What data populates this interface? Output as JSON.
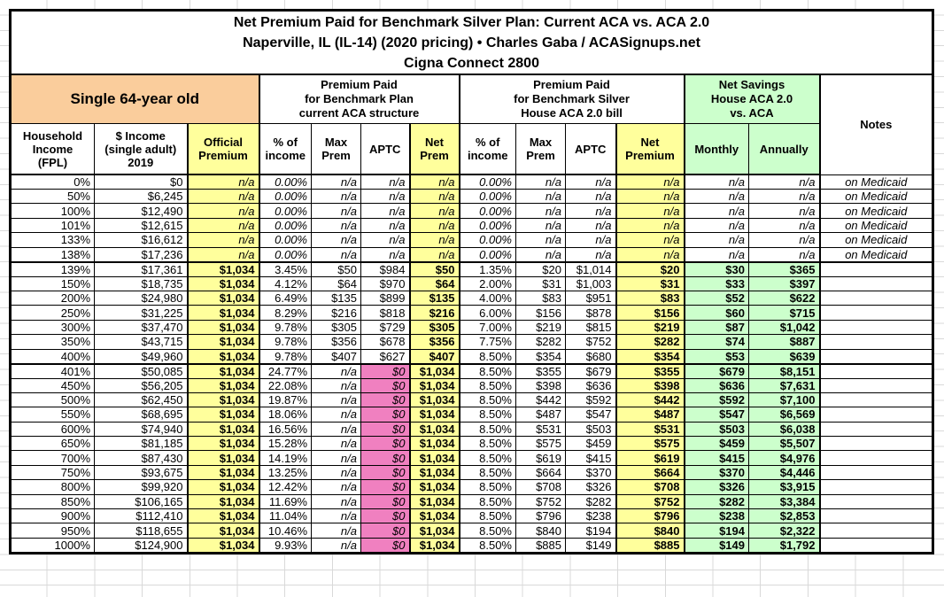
{
  "chart_data": {
    "type": "table",
    "title": "Net Premium Paid for Benchmark Silver Plan: Current ACA vs. ACA 2.0",
    "subtitle": "Naperville, IL (IL-14) (2020 pricing) • Charles Gaba / ACASignups.net",
    "plan": "Cigna Connect 2800",
    "groups": {
      "single": "Single 64-year old",
      "aca": "Premium Paid\nfor Benchmark Plan\ncurrent ACA structure",
      "aca2": "Premium Paid\nfor Benchmark Silver\nHouse ACA 2.0 bill",
      "savings": "Net Savings\nHouse ACA 2.0\nvs. ACA",
      "notes": "Notes"
    },
    "columns": [
      "Household\nIncome\n(FPL)",
      "$ Income\n(single adult)\n2019",
      "Official\nPremium",
      "% of\nincome",
      "Max\nPrem",
      "APTC",
      "Net\nPrem",
      "% of\nincome",
      "Max\nPrem",
      "APTC",
      "Net\nPremium",
      "Monthly",
      "Annually"
    ],
    "colors": {
      "peach": "#FACD9C",
      "yellow": "#FFFF9C",
      "green": "#CCFFCC",
      "pink": "#F080C0"
    },
    "rows": [
      {
        "style": "medicaid",
        "cells": [
          "0%",
          "$0",
          "n/a",
          "0.00%",
          "n/a",
          "n/a",
          "n/a",
          "0.00%",
          "n/a",
          "n/a",
          "n/a",
          "n/a",
          "n/a",
          "on Medicaid"
        ]
      },
      {
        "style": "medicaid",
        "cells": [
          "50%",
          "$6,245",
          "n/a",
          "0.00%",
          "n/a",
          "n/a",
          "n/a",
          "0.00%",
          "n/a",
          "n/a",
          "n/a",
          "n/a",
          "n/a",
          "on Medicaid"
        ]
      },
      {
        "style": "medicaid",
        "cells": [
          "100%",
          "$12,490",
          "n/a",
          "0.00%",
          "n/a",
          "n/a",
          "n/a",
          "0.00%",
          "n/a",
          "n/a",
          "n/a",
          "n/a",
          "n/a",
          "on Medicaid"
        ]
      },
      {
        "style": "medicaid",
        "cells": [
          "101%",
          "$12,615",
          "n/a",
          "0.00%",
          "n/a",
          "n/a",
          "n/a",
          "0.00%",
          "n/a",
          "n/a",
          "n/a",
          "n/a",
          "n/a",
          "on Medicaid"
        ]
      },
      {
        "style": "medicaid",
        "cells": [
          "133%",
          "$16,612",
          "n/a",
          "0.00%",
          "n/a",
          "n/a",
          "n/a",
          "0.00%",
          "n/a",
          "n/a",
          "n/a",
          "n/a",
          "n/a",
          "on Medicaid"
        ]
      },
      {
        "style": "medicaid",
        "sep": true,
        "cells": [
          "138%",
          "$17,236",
          "n/a",
          "0.00%",
          "n/a",
          "n/a",
          "n/a",
          "0.00%",
          "n/a",
          "n/a",
          "n/a",
          "n/a",
          "n/a",
          "on Medicaid"
        ]
      },
      {
        "style": "subsidy",
        "cells": [
          "139%",
          "$17,361",
          "$1,034",
          "3.45%",
          "$50",
          "$984",
          "$50",
          "1.35%",
          "$20",
          "$1,014",
          "$20",
          "$30",
          "$365",
          ""
        ]
      },
      {
        "style": "subsidy",
        "cells": [
          "150%",
          "$18,735",
          "$1,034",
          "4.12%",
          "$64",
          "$970",
          "$64",
          "2.00%",
          "$31",
          "$1,003",
          "$31",
          "$33",
          "$397",
          ""
        ]
      },
      {
        "style": "subsidy",
        "cells": [
          "200%",
          "$24,980",
          "$1,034",
          "6.49%",
          "$135",
          "$899",
          "$135",
          "4.00%",
          "$83",
          "$951",
          "$83",
          "$52",
          "$622",
          ""
        ]
      },
      {
        "style": "subsidy",
        "cells": [
          "250%",
          "$31,225",
          "$1,034",
          "8.29%",
          "$216",
          "$818",
          "$216",
          "6.00%",
          "$156",
          "$878",
          "$156",
          "$60",
          "$715",
          ""
        ]
      },
      {
        "style": "subsidy",
        "cells": [
          "300%",
          "$37,470",
          "$1,034",
          "9.78%",
          "$305",
          "$729",
          "$305",
          "7.00%",
          "$219",
          "$815",
          "$219",
          "$87",
          "$1,042",
          ""
        ]
      },
      {
        "style": "subsidy",
        "cells": [
          "350%",
          "$43,715",
          "$1,034",
          "9.78%",
          "$356",
          "$678",
          "$356",
          "7.75%",
          "$282",
          "$752",
          "$282",
          "$74",
          "$887",
          ""
        ]
      },
      {
        "style": "subsidy",
        "sep": true,
        "cells": [
          "400%",
          "$49,960",
          "$1,034",
          "9.78%",
          "$407",
          "$627",
          "$407",
          "8.50%",
          "$354",
          "$680",
          "$354",
          "$53",
          "$639",
          ""
        ]
      },
      {
        "style": "unsub",
        "cells": [
          "401%",
          "$50,085",
          "$1,034",
          "24.77%",
          "n/a",
          "$0",
          "$1,034",
          "8.50%",
          "$355",
          "$679",
          "$355",
          "$679",
          "$8,151",
          ""
        ]
      },
      {
        "style": "unsub",
        "cells": [
          "450%",
          "$56,205",
          "$1,034",
          "22.08%",
          "n/a",
          "$0",
          "$1,034",
          "8.50%",
          "$398",
          "$636",
          "$398",
          "$636",
          "$7,631",
          ""
        ]
      },
      {
        "style": "unsub",
        "cells": [
          "500%",
          "$62,450",
          "$1,034",
          "19.87%",
          "n/a",
          "$0",
          "$1,034",
          "8.50%",
          "$442",
          "$592",
          "$442",
          "$592",
          "$7,100",
          ""
        ]
      },
      {
        "style": "unsub",
        "cells": [
          "550%",
          "$68,695",
          "$1,034",
          "18.06%",
          "n/a",
          "$0",
          "$1,034",
          "8.50%",
          "$487",
          "$547",
          "$487",
          "$547",
          "$6,569",
          ""
        ]
      },
      {
        "style": "unsub",
        "cells": [
          "600%",
          "$74,940",
          "$1,034",
          "16.56%",
          "n/a",
          "$0",
          "$1,034",
          "8.50%",
          "$531",
          "$503",
          "$531",
          "$503",
          "$6,038",
          ""
        ]
      },
      {
        "style": "unsub",
        "cells": [
          "650%",
          "$81,185",
          "$1,034",
          "15.28%",
          "n/a",
          "$0",
          "$1,034",
          "8.50%",
          "$575",
          "$459",
          "$575",
          "$459",
          "$5,507",
          ""
        ]
      },
      {
        "style": "unsub",
        "cells": [
          "700%",
          "$87,430",
          "$1,034",
          "14.19%",
          "n/a",
          "$0",
          "$1,034",
          "8.50%",
          "$619",
          "$415",
          "$619",
          "$415",
          "$4,976",
          ""
        ]
      },
      {
        "style": "unsub",
        "cells": [
          "750%",
          "$93,675",
          "$1,034",
          "13.25%",
          "n/a",
          "$0",
          "$1,034",
          "8.50%",
          "$664",
          "$370",
          "$664",
          "$370",
          "$4,446",
          ""
        ]
      },
      {
        "style": "unsub",
        "cells": [
          "800%",
          "$99,920",
          "$1,034",
          "12.42%",
          "n/a",
          "$0",
          "$1,034",
          "8.50%",
          "$708",
          "$326",
          "$708",
          "$326",
          "$3,915",
          ""
        ]
      },
      {
        "style": "unsub",
        "cells": [
          "850%",
          "$106,165",
          "$1,034",
          "11.69%",
          "n/a",
          "$0",
          "$1,034",
          "8.50%",
          "$752",
          "$282",
          "$752",
          "$282",
          "$3,384",
          ""
        ]
      },
      {
        "style": "unsub",
        "cells": [
          "900%",
          "$112,410",
          "$1,034",
          "11.04%",
          "n/a",
          "$0",
          "$1,034",
          "8.50%",
          "$796",
          "$238",
          "$796",
          "$238",
          "$2,853",
          ""
        ]
      },
      {
        "style": "unsub",
        "cells": [
          "950%",
          "$118,655",
          "$1,034",
          "10.46%",
          "n/a",
          "$0",
          "$1,034",
          "8.50%",
          "$840",
          "$194",
          "$840",
          "$194",
          "$2,322",
          ""
        ]
      },
      {
        "style": "unsub",
        "cells": [
          "1000%",
          "$124,900",
          "$1,034",
          "9.93%",
          "n/a",
          "$0",
          "$1,034",
          "8.50%",
          "$885",
          "$149",
          "$885",
          "$149",
          "$1,792",
          ""
        ]
      }
    ]
  }
}
